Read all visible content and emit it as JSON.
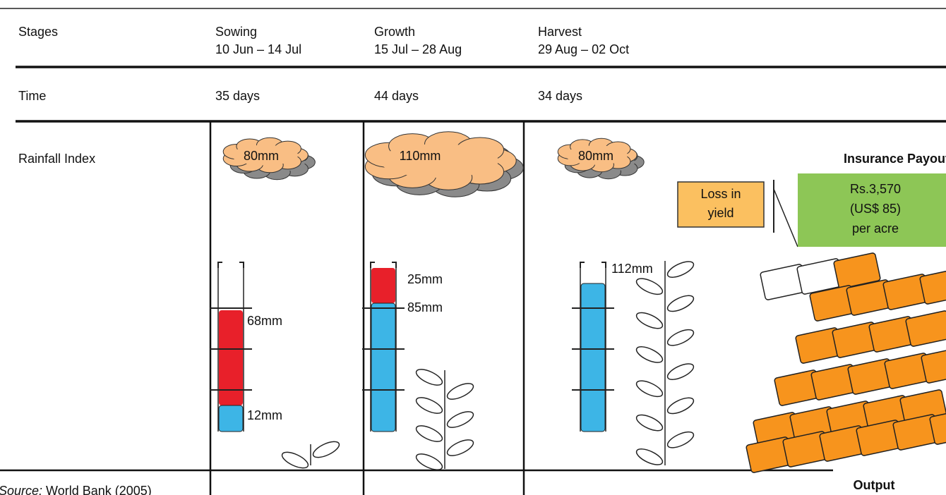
{
  "header": {
    "label": "Stages",
    "stages": [
      {
        "name": "Sowing",
        "dates": "10 Jun – 14 Jul"
      },
      {
        "name": "Growth",
        "dates": "15 Jul – 28 Aug"
      },
      {
        "name": "Harvest",
        "dates": "29 Aug – 02 Oct"
      }
    ]
  },
  "time": {
    "label": "Time",
    "values": [
      "35 days",
      "44 days",
      "34 days"
    ]
  },
  "rainfall": {
    "label": "Rainfall Index",
    "clouds": [
      "80mm",
      "110mm",
      "80mm"
    ],
    "gauges": [
      {
        "labels": [
          "68mm",
          "12mm"
        ]
      },
      {
        "labels": [
          "25mm",
          "85mm"
        ]
      },
      {
        "labels": [
          "112mm"
        ]
      }
    ]
  },
  "payout": {
    "title": "Insurance Payout",
    "loss": [
      "Loss in",
      "yield"
    ],
    "amount": [
      "Rs.3,570",
      "(US$ 85)",
      "per acre"
    ]
  },
  "output": "Output",
  "source": {
    "label": "Source:",
    "text": "World Bank (2005)"
  }
}
